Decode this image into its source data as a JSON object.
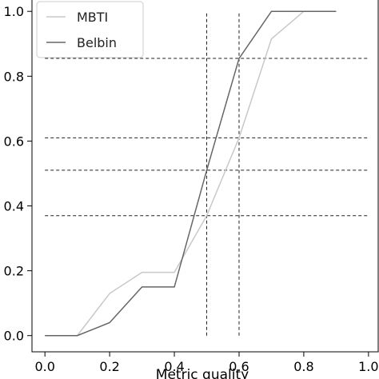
{
  "chart_data": {
    "type": "line",
    "title": "",
    "xlabel": "Metric quality",
    "ylabel": "",
    "xlim": [
      -0.04,
      1.03
    ],
    "ylim": [
      -0.05,
      1.04
    ],
    "xticks": [
      "0.0",
      "0.2",
      "0.4",
      "0.6",
      "0.8",
      "1.0"
    ],
    "yticks": [
      "0.0",
      "0.2",
      "0.4",
      "0.6",
      "0.8",
      "1.0"
    ],
    "grid": false,
    "legend": "top-left",
    "series": [
      {
        "name": "MBTI",
        "color": "#c8c8c8",
        "x": [
          0.0,
          0.1,
          0.2,
          0.3,
          0.4,
          0.5,
          0.6,
          0.7,
          0.8,
          0.9
        ],
        "y": [
          0.0,
          0.0,
          0.13,
          0.195,
          0.195,
          0.37,
          0.61,
          0.915,
          1.0,
          1.0
        ]
      },
      {
        "name": "Belbin",
        "color": "#666666",
        "x": [
          0.0,
          0.1,
          0.2,
          0.3,
          0.4,
          0.5,
          0.6,
          0.7,
          0.8,
          0.9
        ],
        "y": [
          0.0,
          0.0,
          0.04,
          0.15,
          0.15,
          0.51,
          0.855,
          1.0,
          1.0,
          1.0
        ]
      }
    ],
    "reference_lines": {
      "vertical_x": [
        0.5,
        0.6
      ],
      "vertical_y_range": [
        0.0,
        1.0
      ],
      "horizontal_y": [
        0.855,
        0.61,
        0.51,
        0.37
      ],
      "horizontal_x_range": [
        0.0,
        1.0
      ]
    }
  }
}
